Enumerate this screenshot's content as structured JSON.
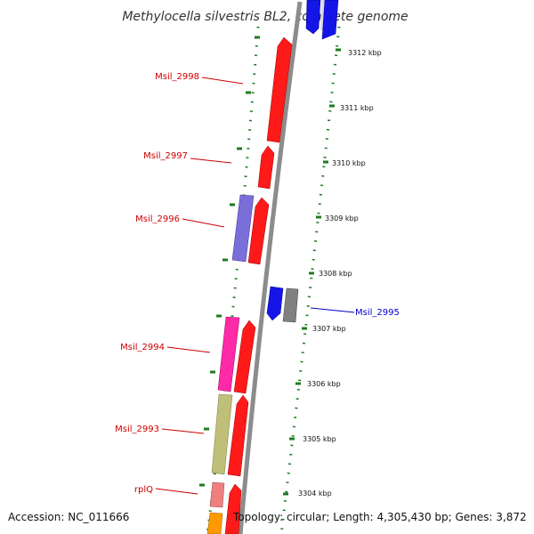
{
  "title": "Methylocella silvestris BL2, complete genome",
  "colors": {
    "forward": "#ff0000",
    "reverse": "#0000ff",
    "backbone": "#8c8c8c",
    "tick": "#1f7a1f",
    "label_red": "#cc0000",
    "label_blue": "#0000cc"
  },
  "kbp_ticks": [
    "3312 kbp",
    "3311 kbp",
    "3310 kbp",
    "3309 kbp",
    "3308 kbp",
    "3307 kbp",
    "3306 kbp",
    "3305 kbp",
    "3304 kbp"
  ],
  "gene_labels": [
    {
      "name": "Msil_2998",
      "color": "red"
    },
    {
      "name": "Msil_2997",
      "color": "red"
    },
    {
      "name": "Msil_2996",
      "color": "red"
    },
    {
      "name": "Msil_2995",
      "color": "blue"
    },
    {
      "name": "Msil_2994",
      "color": "red"
    },
    {
      "name": "Msil_2993",
      "color": "red"
    },
    {
      "name": "rplQ",
      "color": "red"
    }
  ],
  "footer": {
    "accession": "Accession: NC_011666",
    "topology": "Topology: circular; Length: 4,305,430 bp; Genes: 3,872"
  }
}
